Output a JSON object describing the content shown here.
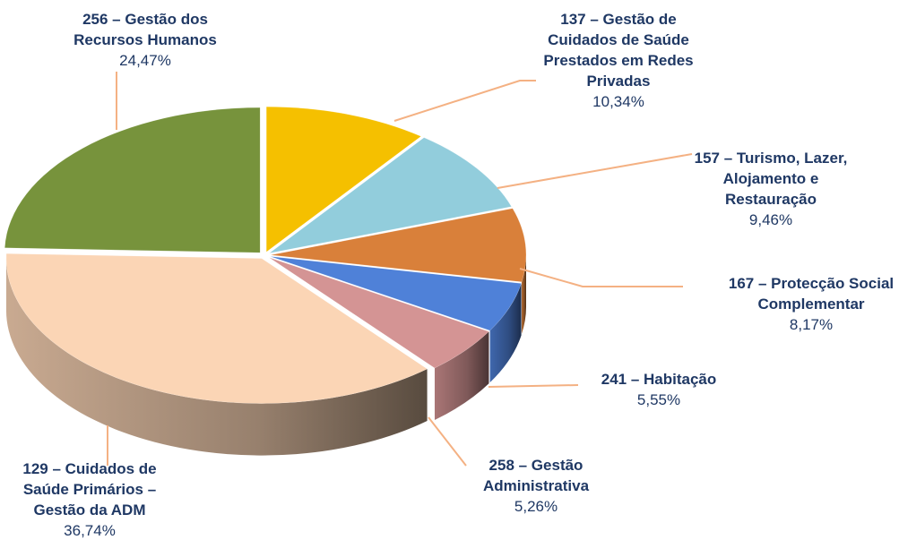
{
  "chart_data": {
    "type": "pie",
    "categories": [
      "137 – Gestão de Cuidados de Saúde Prestados em Redes Privadas",
      "157 – Turismo, Lazer, Alojamento e Restauração",
      "167 – Protecção Social Complementar",
      "241 – Habitação",
      "258 – Gestão Administrativa",
      "129 – Cuidados de Saúde Primários – Gestão da ADM",
      "256 – Gestão dos Recursos Humanos"
    ],
    "values": [
      10.34,
      9.46,
      8.17,
      5.55,
      5.26,
      36.74,
      24.47
    ],
    "value_labels": [
      "10,34%",
      "9,46%",
      "8,17%",
      "5,55%",
      "5,26%",
      "36,74%",
      "24,47%"
    ],
    "colors": [
      "#f5c000",
      "#92cddc",
      "#d9803a",
      "#4f81d8",
      "#d49494",
      "#fbd5b5",
      "#77933c"
    ]
  }
}
